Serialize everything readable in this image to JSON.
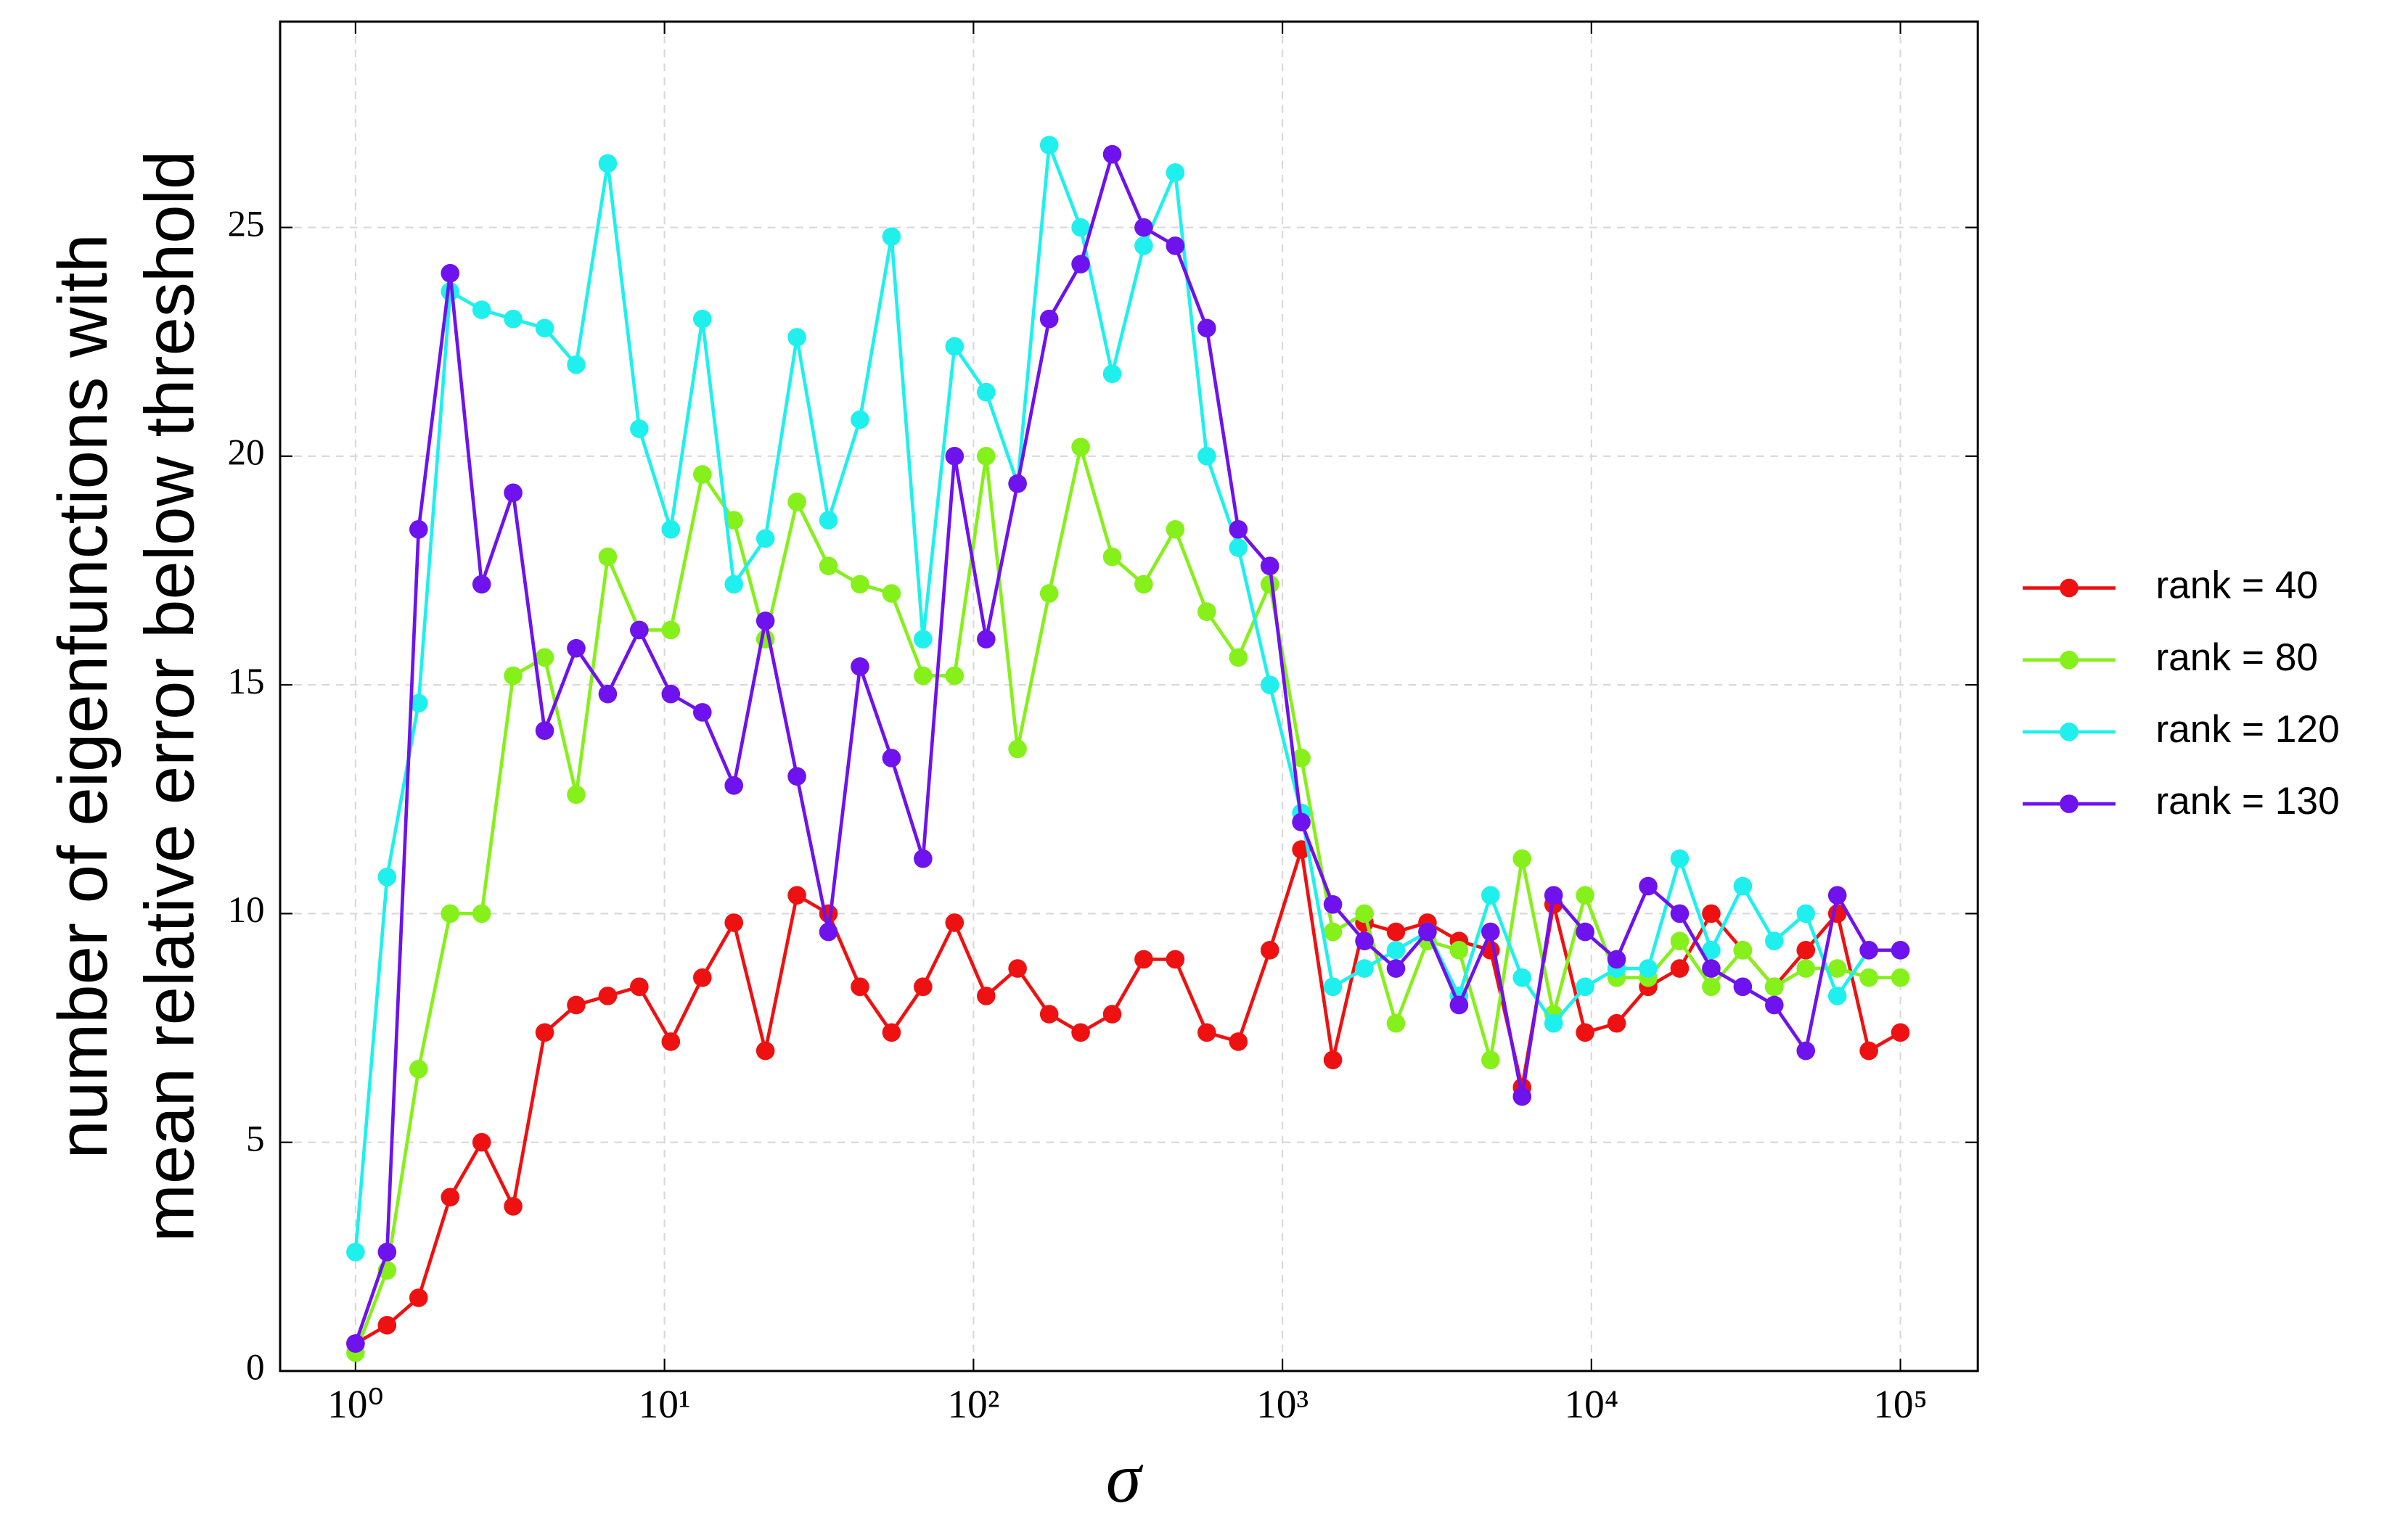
{
  "chart_data": {
    "type": "line",
    "xlabel": "σ",
    "ylabel": [
      "number of eigenfunctions with",
      "mean relative error below threshold"
    ],
    "x": [
      1,
      1.265,
      1.6,
      2.024,
      2.56,
      3.237,
      4.095,
      5.179,
      6.551,
      8.286,
      10.48,
      13.26,
      16.77,
      21.21,
      26.83,
      33.93,
      42.92,
      54.29,
      68.66,
      86.85,
      109.9,
      138.9,
      175.8,
      222.3,
      281.2,
      355.6,
      449.8,
      569.0,
      719.7,
      910.3,
      1151,
      1456,
      1842,
      2330,
      2947,
      3728,
      4715,
      5964,
      7543,
      9541,
      12068,
      15264,
      19307,
      24421,
      30888,
      39069,
      49417,
      62506,
      79060,
      100000
    ],
    "series": [
      {
        "name": "rank = 40",
        "color": "#ee1111",
        "values": [
          0.6,
          1.0,
          1.6,
          3.8,
          5.0,
          3.6,
          7.4,
          8.0,
          8.2,
          8.4,
          7.2,
          8.6,
          9.8,
          7.0,
          10.4,
          10.0,
          8.4,
          7.4,
          8.4,
          9.8,
          8.2,
          8.8,
          7.8,
          7.4,
          7.8,
          9.0,
          9.0,
          7.4,
          7.2,
          9.2,
          11.4,
          6.8,
          9.8,
          9.6,
          9.8,
          9.4,
          9.2,
          6.2,
          10.2,
          7.4,
          7.6,
          8.4,
          8.8,
          10.0,
          9.2,
          8.4,
          9.2,
          10.0,
          7.0,
          7.4
        ]
      },
      {
        "name": "rank = 80",
        "color": "#86f01a",
        "values": [
          0.4,
          2.2,
          6.6,
          10.0,
          10.0,
          15.2,
          15.6,
          12.6,
          17.8,
          16.2,
          16.2,
          19.6,
          18.6,
          16.0,
          19.0,
          17.6,
          17.2,
          17.0,
          15.2,
          15.2,
          20.0,
          13.6,
          17.0,
          20.2,
          17.8,
          17.2,
          18.4,
          16.6,
          15.6,
          17.2,
          13.4,
          9.6,
          10.0,
          7.6,
          9.4,
          9.2,
          6.8,
          11.2,
          7.8,
          10.4,
          8.6,
          8.6,
          9.4,
          8.4,
          9.2,
          8.4,
          8.8,
          8.8,
          8.6,
          8.6
        ]
      },
      {
        "name": "rank = 120",
        "color": "#1ff0ee",
        "values": [
          2.6,
          10.8,
          14.6,
          23.6,
          23.2,
          23.0,
          22.8,
          22.0,
          26.4,
          20.6,
          18.4,
          23.0,
          17.2,
          18.2,
          22.6,
          18.6,
          20.8,
          24.8,
          16.0,
          22.4,
          21.4,
          19.4,
          26.8,
          25.0,
          21.8,
          24.6,
          26.2,
          20.0,
          18.0,
          15.0,
          12.2,
          8.4,
          8.8,
          9.2,
          9.6,
          8.2,
          10.4,
          8.6,
          7.6,
          8.4,
          8.8,
          8.8,
          11.2,
          9.2,
          10.6,
          9.4,
          10.0,
          8.2,
          9.2,
          9.2
        ]
      },
      {
        "name": "rank = 130",
        "color": "#6e12ee",
        "values": [
          0.6,
          2.6,
          18.4,
          24.0,
          17.2,
          19.2,
          14.0,
          15.8,
          14.8,
          16.2,
          14.8,
          14.4,
          12.8,
          16.4,
          13.0,
          9.6,
          15.4,
          13.4,
          11.2,
          20.0,
          16.0,
          19.4,
          23.0,
          24.2,
          26.6,
          25.0,
          24.6,
          22.8,
          18.4,
          17.6,
          12.0,
          10.2,
          9.4,
          8.8,
          9.6,
          8.0,
          9.6,
          6.0,
          10.4,
          9.6,
          9.0,
          10.6,
          10.0,
          8.8,
          8.4,
          8.0,
          7.0,
          10.4,
          9.2,
          9.2
        ]
      }
    ],
    "xscale": "log",
    "xlim": [
      0.57,
      178000
    ],
    "xticks": [
      {
        "value": 1,
        "label": "10⁰"
      },
      {
        "value": 10,
        "label": "10¹"
      },
      {
        "value": 100,
        "label": "10²"
      },
      {
        "value": 1000,
        "label": "10³"
      },
      {
        "value": 10000,
        "label": "10⁴"
      },
      {
        "value": 100000,
        "label": "10⁵"
      }
    ],
    "ylim": [
      0,
      29.5
    ],
    "yticks": [
      0,
      5,
      10,
      15,
      20,
      25
    ],
    "grid": true,
    "legend": "outside-right"
  }
}
